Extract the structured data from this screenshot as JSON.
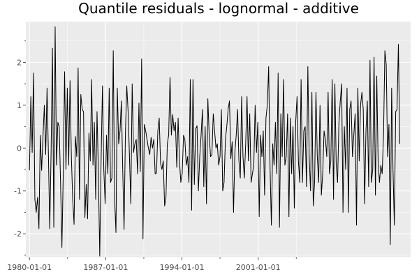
{
  "chart_data": {
    "type": "line",
    "title": "Quantile residuals - lognormal - additive",
    "xlabel": "",
    "ylabel": "",
    "x_start": "1980-01-01",
    "x_end": "2014-01-01",
    "x_range": [
      "1979-09-01",
      "2015-01-01"
    ],
    "y_range": [
      -2.55,
      2.95
    ],
    "y_ticks": [
      -2,
      -1,
      0,
      1,
      2
    ],
    "y_tick_labels": [
      "-2",
      "-1",
      "0",
      "1",
      "2"
    ],
    "x_ticks": [
      "1980-01-01",
      "1987-01-01",
      "1994-01-01",
      "2001-01-01"
    ],
    "x_tick_labels": [
      "1980-01-01",
      "1987-01-01",
      "1994-01-01",
      "2001-01-01"
    ],
    "grid": true,
    "legend": "none",
    "colors": {
      "panel": "#ebebeb",
      "grid": "#ffffff",
      "line": "#000000",
      "tick": "#4d4d4d"
    },
    "series": [
      {
        "values": [
          -0.52,
          1.2,
          -0.1,
          1.75,
          -1.2,
          -1.5,
          -1.15,
          -1.88,
          0.3,
          -0.52,
          0.28,
          1.0,
          -0.15,
          1.4,
          -0.12,
          -1.88,
          -0.1,
          2.33,
          -1.85,
          2.83,
          -0.4,
          0.6,
          0.5,
          -0.8,
          -2.32,
          -0.6,
          1.78,
          -0.5,
          1.4,
          -0.4,
          1.57,
          -0.2,
          -1.2,
          -1.78,
          0.27,
          -0.2,
          1.87,
          -1.2,
          1.25,
          0.9,
          0.85,
          -1.62,
          -0.85,
          -1.65,
          0.35,
          -0.3,
          1.6,
          -0.4,
          0.6,
          -1.2,
          0.85,
          -0.6,
          -2.52,
          -0.3,
          1.45,
          -0.5,
          -1.3,
          0.3,
          -0.6,
          1.4,
          -0.8,
          -0.7,
          2.27,
          -1.2,
          -1.97,
          1.4,
          0.1,
          0.4,
          1.1,
          -0.5,
          -1.9,
          0.35,
          1.45,
          0.85,
          -0.2,
          -1.3,
          1.5,
          -0.1,
          0.1,
          0.2,
          -0.6,
          1.05,
          -0.55,
          2.08,
          -2.12,
          0.55,
          0.4,
          0.2,
          0.0,
          -0.15,
          0.25,
          0.0,
          0.2,
          -0.6,
          -0.58,
          0.4,
          0.7,
          -0.35,
          -0.5,
          -0.3,
          -1.35,
          -1.15,
          0.1,
          0.3,
          1.65,
          0.3,
          0.78,
          0.4,
          0.6,
          -0.45,
          0.7,
          -0.3,
          -0.8,
          -0.6,
          0.3,
          0.2,
          -0.4,
          -0.2,
          -0.8,
          1.6,
          -1.45,
          1.6,
          -0.85,
          0.45,
          0.52,
          -1.0,
          -0.2,
          0.3,
          0.9,
          -0.9,
          0.5,
          -1.3,
          1.15,
          0.3,
          -0.2,
          -0.15,
          0.8,
          0.4,
          0.0,
          0.1,
          -0.4,
          -0.2,
          0.9,
          -1.0,
          -0.8,
          0.2,
          0.5,
          0.9,
          1.1,
          -0.25,
          0.15,
          -1.5,
          -0.1,
          0.3,
          0.9,
          -0.3,
          -0.7,
          1.2,
          -0.2,
          -0.7,
          0.1,
          1.2,
          -0.3,
          0.8,
          -0.8,
          -0.6,
          -0.4,
          1.0,
          -0.1,
          0.6,
          -1.6,
          0.3,
          -0.2,
          0.4,
          -1.1,
          0.7,
          1.0,
          1.9,
          -0.4,
          -1.8,
          0.1,
          -0.4,
          0.6,
          -0.6,
          1.75,
          -1.85,
          0.8,
          -0.2,
          1.6,
          -0.4,
          -0.2,
          0.8,
          -1.6,
          0.7,
          -0.6,
          0.5,
          -1.4,
          0.6,
          1.2,
          -0.3,
          -0.8,
          1.6,
          -0.8,
          0.4,
          0.5,
          -0.9,
          1.9,
          -0.2,
          -1.0,
          1.3,
          -1.35,
          -0.8,
          1.3,
          -0.2,
          -0.8,
          1.0,
          -1.1,
          -0.6,
          0.4,
          0.2,
          -0.2,
          1.3,
          -0.6,
          -0.3,
          1.6,
          -1.2,
          1.5,
          -0.4,
          -0.8,
          0.6,
          1.1,
          1.5,
          -1.5,
          0.5,
          -0.5,
          1.4,
          -1.5,
          0.9,
          1.1,
          -0.2,
          0.3,
          0.8,
          -1.8,
          1.4,
          -0.3,
          1.0,
          1.3,
          0.9,
          -1.3,
          0.4,
          1.1,
          -0.9,
          2.05,
          -0.8,
          -0.5,
          2.12,
          -1.1,
          1.68,
          -0.3,
          -0.8,
          -0.4,
          -0.6,
          0.3,
          2.27,
          1.95,
          -0.2,
          0.55,
          -2.25,
          1.4,
          -0.5,
          -1.8,
          0.85,
          0.9,
          2.42,
          0.1
        ]
      }
    ]
  }
}
